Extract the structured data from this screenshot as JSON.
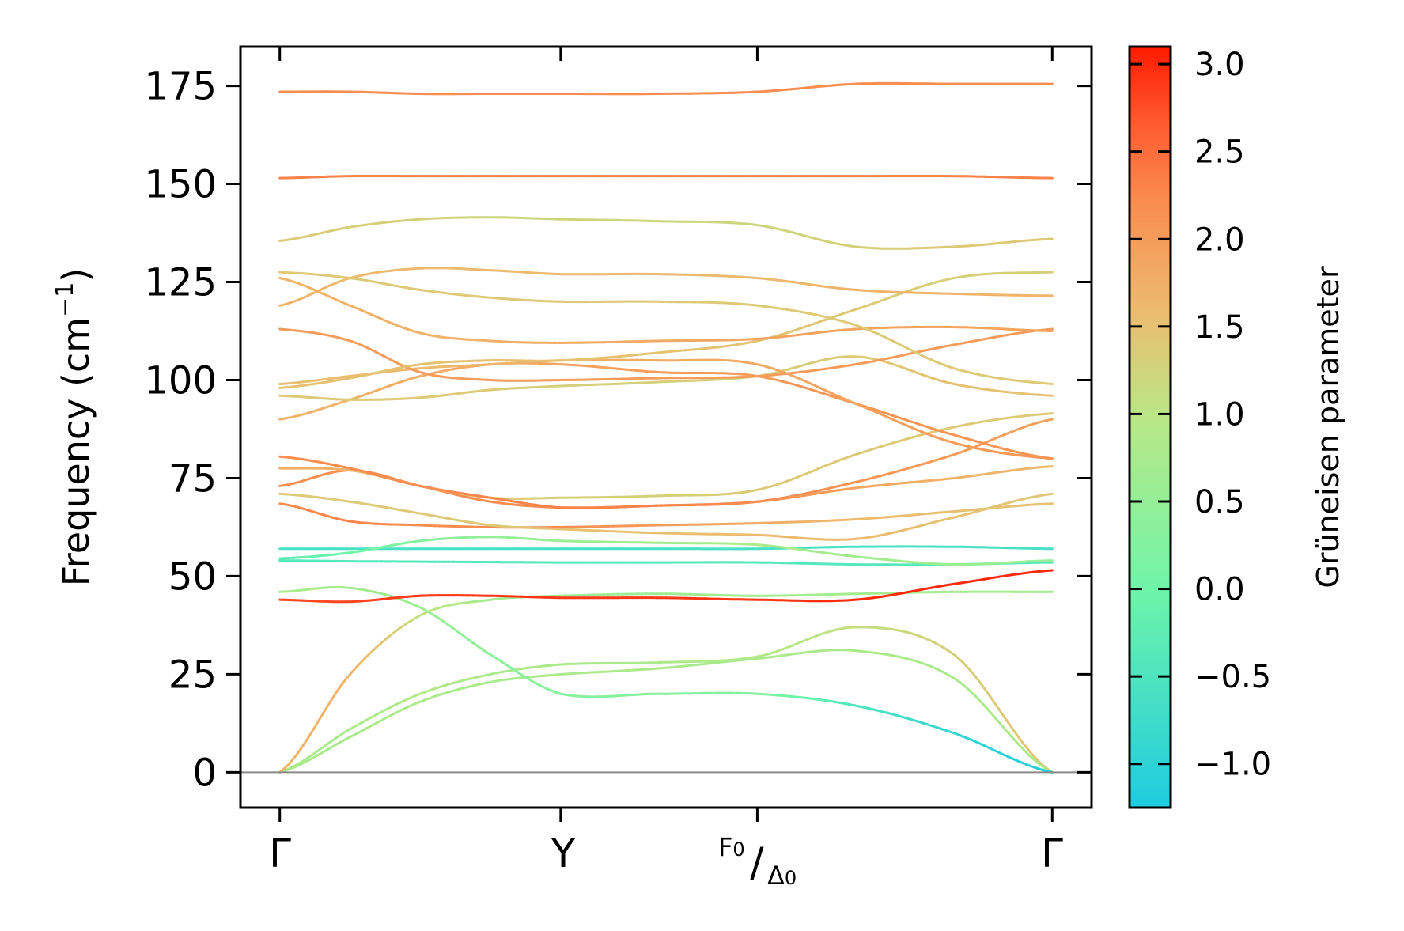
{
  "chart_data": {
    "type": "line",
    "title": "",
    "xlabel": "",
    "ylabel": "Frequency (cm",
    "ylabel_unit_sup": "−1",
    "ylabel_close": ")",
    "ylim": [
      -9,
      185
    ],
    "yticks": [
      0,
      25,
      50,
      75,
      100,
      125,
      150,
      175
    ],
    "ytick_labels": [
      "0",
      "25",
      "50",
      "75",
      "100",
      "125",
      "150",
      "175"
    ],
    "xticks": [
      0,
      1,
      1.7,
      2.75
    ],
    "xlim": [
      -0.14,
      2.89
    ],
    "xtick_labels": {
      "gamma_start": "Γ",
      "y_point": "Y",
      "f0_main": "F",
      "f0_sub": "0",
      "slash": "/",
      "delta_main": "Δ",
      "delta_sub": "0",
      "gamma_end": "Γ"
    },
    "zero_line": true,
    "colorbar": {
      "label": "Grüneisen parameter",
      "range": [
        -1.25,
        3.1
      ],
      "ticks": [
        -1.0,
        -0.5,
        0.0,
        0.5,
        1.0,
        1.5,
        2.0,
        2.5,
        3.0
      ],
      "tick_labels": [
        "−1.0",
        "−0.5",
        "0.0",
        "0.5",
        "1.0",
        "1.5",
        "2.0",
        "2.5",
        "3.0"
      ],
      "colormap": "rainbow"
    },
    "x_nodes": [
      0,
      0.25,
      0.5,
      0.75,
      1.0,
      1.35,
      1.7,
      2.05,
      2.4,
      2.75
    ],
    "bands": [
      {
        "freq": [
          0,
          11,
          20,
          25,
          27.5,
          28,
          29.5,
          37,
          30,
          0
        ],
        "gamma": [
          0.8,
          0.8,
          0.9,
          0.8,
          0.8,
          0.8,
          0.9,
          1.1,
          1.3,
          1.5
        ]
      },
      {
        "freq": [
          0,
          9,
          18,
          23,
          25,
          26.5,
          29,
          31,
          24,
          0
        ],
        "gamma": [
          0.8,
          0.8,
          0.8,
          0.8,
          0.8,
          0.8,
          0.8,
          0.8,
          0.8,
          0.8
        ]
      },
      {
        "freq": [
          0,
          25,
          40,
          44,
          45,
          45.5,
          45,
          45.5,
          46,
          46
        ],
        "gamma": [
          1.7,
          1.7,
          1.1,
          0.7,
          0.6,
          0.6,
          0.7,
          0.7,
          0.7,
          0.7
        ]
      },
      {
        "freq": [
          46,
          47,
          42,
          30,
          20,
          20,
          20,
          17,
          10,
          0
        ],
        "gamma": [
          0.8,
          0.7,
          0.6,
          0.4,
          0.3,
          0.3,
          0.3,
          -0.5,
          -0.9,
          -1.2
        ]
      },
      {
        "freq": [
          44,
          43.5,
          45,
          45,
          44.5,
          44.5,
          44,
          44,
          48,
          51.5
        ],
        "gamma": [
          2.8,
          2.8,
          2.9,
          2.9,
          2.9,
          2.9,
          2.9,
          3.0,
          3.0,
          3.0
        ]
      },
      {
        "freq": [
          54,
          53.8,
          53.7,
          53.6,
          53.5,
          53.5,
          53.5,
          53,
          53,
          53.5
        ],
        "gamma": [
          -0.4,
          -0.4,
          -0.4,
          -0.4,
          -0.4,
          -0.4,
          -0.4,
          -0.4,
          -0.4,
          -0.4
        ]
      },
      {
        "freq": [
          57,
          57,
          57,
          57,
          57,
          57,
          57,
          57.5,
          57.5,
          57
        ],
        "gamma": [
          -0.6,
          -0.6,
          -0.6,
          -0.6,
          -0.6,
          -0.6,
          -0.6,
          -0.6,
          -0.6,
          -0.6
        ]
      },
      {
        "freq": [
          54.5,
          56,
          59,
          60,
          59,
          58.5,
          58,
          55,
          53,
          54
        ],
        "gamma": [
          -0.3,
          0.0,
          0.3,
          0.5,
          0.6,
          0.7,
          0.8,
          0.7,
          0.6,
          0.5
        ]
      },
      {
        "freq": [
          68.5,
          64,
          63,
          62.5,
          62.5,
          63,
          63.5,
          64.5,
          66.5,
          68.5
        ],
        "gamma": [
          2.2,
          2.3,
          2.2,
          2.2,
          2.2,
          2.0,
          1.8,
          1.6,
          1.5,
          1.5
        ]
      },
      {
        "freq": [
          71,
          69,
          66,
          63,
          62,
          61,
          60.5,
          59.5,
          65,
          71
        ],
        "gamma": [
          1.4,
          1.4,
          1.4,
          1.4,
          1.5,
          1.5,
          1.6,
          1.6,
          1.5,
          1.4
        ]
      },
      {
        "freq": [
          73,
          77,
          73,
          69,
          67.5,
          68,
          69,
          74,
          81,
          90
        ],
        "gamma": [
          2.2,
          2.2,
          2.2,
          2.2,
          2.2,
          2.2,
          2.2,
          2.1,
          2.0,
          1.9
        ]
      },
      {
        "freq": [
          77.5,
          77,
          73,
          70,
          70,
          70.5,
          72,
          81,
          88,
          91.5
        ],
        "gamma": [
          1.8,
          1.7,
          1.6,
          1.4,
          1.3,
          1.3,
          1.4,
          1.4,
          1.4,
          1.4
        ]
      },
      {
        "freq": [
          80.5,
          77.5,
          73,
          70,
          67.5,
          68,
          69,
          72.5,
          75,
          78
        ],
        "gamma": [
          2.2,
          2.2,
          2.2,
          2.3,
          2.3,
          2.3,
          2.2,
          1.9,
          1.7,
          1.6
        ]
      },
      {
        "freq": [
          90,
          95,
          101,
          104,
          104,
          102,
          101,
          94,
          86,
          80
        ],
        "gamma": [
          1.7,
          1.7,
          1.8,
          1.8,
          1.9,
          2.0,
          2.0,
          2.1,
          2.1,
          2.1
        ]
      },
      {
        "freq": [
          96,
          95,
          95.5,
          97.5,
          98.5,
          99.5,
          101,
          106,
          99,
          96
        ],
        "gamma": [
          1.4,
          1.4,
          1.4,
          1.4,
          1.3,
          1.3,
          1.3,
          1.4,
          1.5,
          1.5
        ]
      },
      {
        "freq": [
          99,
          101,
          103,
          104,
          105,
          105,
          104,
          94,
          84,
          80
        ],
        "gamma": [
          1.5,
          1.6,
          1.6,
          1.7,
          1.7,
          1.8,
          1.8,
          1.9,
          2.0,
          2.1
        ]
      },
      {
        "freq": [
          113,
          110,
          102,
          100,
          100,
          100.5,
          101,
          104,
          109,
          113
        ],
        "gamma": [
          2.0,
          2.0,
          2.0,
          2.0,
          2.0,
          2.0,
          2.0,
          2.0,
          2.0,
          2.0
        ]
      },
      {
        "freq": [
          98,
          100.5,
          104,
          105,
          105,
          107,
          110,
          118,
          126,
          127.5
        ],
        "gamma": [
          1.5,
          1.5,
          1.5,
          1.5,
          1.5,
          1.5,
          1.5,
          1.4,
          1.3,
          1.3
        ]
      },
      {
        "freq": [
          119,
          126,
          128.5,
          128,
          127,
          127,
          126,
          123,
          122,
          121.5
        ],
        "gamma": [
          1.7,
          1.6,
          1.6,
          1.6,
          1.6,
          1.6,
          1.6,
          1.7,
          1.7,
          1.7
        ]
      },
      {
        "freq": [
          126,
          119,
          112,
          110,
          109.5,
          110,
          110.5,
          113,
          113.5,
          112.5
        ],
        "gamma": [
          1.7,
          1.7,
          1.7,
          1.7,
          1.8,
          1.8,
          1.9,
          1.9,
          1.9,
          1.9
        ]
      },
      {
        "freq": [
          127.5,
          126,
          123,
          121,
          120,
          120,
          119,
          114,
          103,
          99
        ],
        "gamma": [
          1.4,
          1.4,
          1.4,
          1.4,
          1.4,
          1.4,
          1.4,
          1.4,
          1.4,
          1.4
        ]
      },
      {
        "freq": [
          135.5,
          139,
          141,
          141.5,
          141,
          140.5,
          139.5,
          134,
          134,
          136
        ],
        "gamma": [
          1.4,
          1.3,
          1.3,
          1.2,
          1.2,
          1.2,
          1.2,
          1.3,
          1.4,
          1.4
        ]
      },
      {
        "freq": [
          151.5,
          152,
          152,
          152,
          152,
          152,
          152,
          152,
          152,
          151.5
        ],
        "gamma": [
          2.3,
          2.3,
          2.3,
          2.3,
          2.3,
          2.3,
          2.3,
          2.3,
          2.3,
          2.3
        ]
      },
      {
        "freq": [
          173.5,
          173.5,
          173,
          173,
          173,
          173,
          173.5,
          175.5,
          175.5,
          175.5
        ],
        "gamma": [
          2.2,
          2.2,
          2.2,
          2.2,
          2.2,
          2.2,
          2.2,
          2.2,
          2.2,
          2.2
        ]
      }
    ]
  }
}
